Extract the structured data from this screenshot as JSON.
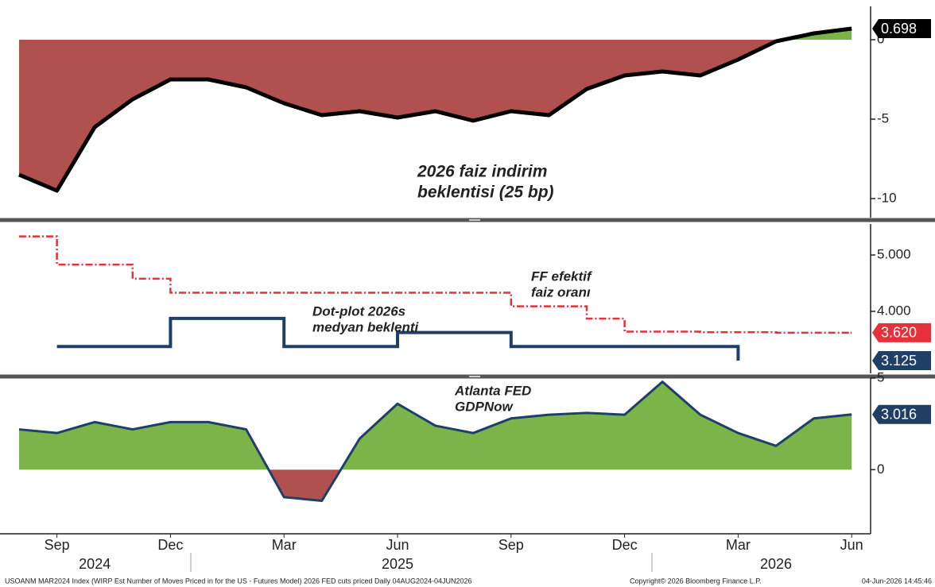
{
  "chart_data": [
    {
      "type": "area",
      "x": [
        "2024-08",
        "2024-09",
        "2024-10",
        "2024-11",
        "2024-12",
        "2025-01",
        "2025-02",
        "2025-03",
        "2025-04",
        "2025-05",
        "2025-06",
        "2025-07",
        "2025-08",
        "2025-09",
        "2025-10",
        "2025-11",
        "2025-12",
        "2026-01",
        "2026-02",
        "2026-03",
        "2026-04",
        "2026-05",
        "2026-06"
      ],
      "series": [
        {
          "name": "2026 FED cuts priced",
          "color": "#000000",
          "values": [
            -8.5,
            -9.5,
            -5.5,
            -3.75,
            -2.5,
            -2.5,
            -3,
            -4,
            -4.75,
            -4.5,
            -4.9,
            -4.5,
            -5.1,
            -4.5,
            -4.75,
            -3.1,
            -2.25,
            -2,
            -2.25,
            -1.25,
            -0.1,
            0.4,
            0.698
          ]
        }
      ],
      "fill_above_color": "#7bb54a",
      "fill_below_color": "#b0504f",
      "annotations": [
        "2026 faiz indirim",
        "beklentisi (25 bp)"
      ],
      "ylim": [
        -11.2,
        2.1
      ],
      "yticks": [
        0,
        -5,
        -10
      ]
    },
    {
      "type": "step",
      "x": [
        "2024-08",
        "2024-09",
        "2024-10",
        "2024-11",
        "2024-12",
        "2025-01",
        "2025-02",
        "2025-03",
        "2025-04",
        "2025-05",
        "2025-06",
        "2025-07",
        "2025-08",
        "2025-09",
        "2025-10",
        "2025-11",
        "2025-12",
        "2026-01",
        "2026-02",
        "2026-03",
        "2026-04",
        "2026-05",
        "2026-06"
      ],
      "series": [
        {
          "name": "FF efektif faiz oranı",
          "color": "#e8303a",
          "dashed": true,
          "values": [
            5.33,
            4.83,
            4.83,
            4.58,
            4.33,
            4.33,
            4.33,
            4.33,
            4.33,
            4.33,
            4.33,
            4.33,
            4.33,
            4.09,
            4.09,
            3.87,
            3.64,
            3.64,
            3.63,
            3.63,
            3.62,
            3.62,
            3.62
          ],
          "value_labels": [
            null,
            null,
            null,
            null,
            null,
            null,
            null,
            null,
            null,
            null,
            null,
            null,
            null,
            null,
            null,
            null,
            null,
            null,
            null,
            null,
            null,
            null,
            "3.620"
          ]
        },
        {
          "name": "Dot-plot 2026s medyan beklenti",
          "color": "#1f3f66",
          "dashed": false,
          "values": [
            null,
            3.375,
            3.375,
            3.375,
            3.875,
            3.875,
            3.875,
            3.375,
            3.375,
            3.375,
            3.625,
            3.625,
            3.625,
            3.375,
            3.375,
            3.375,
            3.375,
            3.375,
            3.375,
            3.125,
            null,
            null,
            null
          ],
          "value_labels": [
            null,
            null,
            null,
            null,
            null,
            null,
            null,
            null,
            null,
            null,
            null,
            null,
            null,
            null,
            null,
            null,
            null,
            null,
            null,
            "3.125",
            null,
            null,
            null
          ]
        }
      ],
      "annotations": [
        {
          "lines": [
            "FF efektif",
            "faiz oranı"
          ]
        },
        {
          "lines": [
            "Dot-plot 2026s",
            "medyan beklenti"
          ]
        }
      ],
      "ylim": [
        2.9,
        5.55
      ],
      "yticks": [
        {
          "value": 5,
          "label": "5.000"
        },
        {
          "value": 4,
          "label": "4.000"
        }
      ]
    },
    {
      "type": "area",
      "x": [
        "2024-08",
        "2024-09",
        "2024-10",
        "2024-11",
        "2024-12",
        "2025-01",
        "2025-02",
        "2025-03",
        "2025-04",
        "2025-05",
        "2025-06",
        "2025-07",
        "2025-08",
        "2025-09",
        "2025-10",
        "2025-11",
        "2025-12",
        "2026-01",
        "2026-02",
        "2026-03",
        "2026-04",
        "2026-05",
        "2026-06"
      ],
      "series": [
        {
          "name": "Atlanta FED GDPNow",
          "color": "#1f3f66",
          "values": [
            2.2,
            2.0,
            2.6,
            2.2,
            2.6,
            2.6,
            2.2,
            -1.5,
            -1.7,
            1.7,
            3.6,
            2.4,
            2.0,
            2.8,
            3.0,
            3.1,
            3.0,
            4.8,
            3.0,
            2.0,
            1.3,
            2.8,
            3.016
          ]
        }
      ],
      "fill_above_color": "#7bb54a",
      "fill_below_color": "#b0504f",
      "annotations": [
        "Atlanta FED",
        "GDPNow"
      ],
      "ylim": [
        -3.5,
        5
      ],
      "yticks": [
        5,
        0
      ],
      "xticks": [
        {
          "value": "2024-09",
          "label": "Sep"
        },
        {
          "value": "2024-12",
          "label": "Dec"
        },
        {
          "value": "2025-03",
          "label": "Mar"
        },
        {
          "value": "2025-06",
          "label": "Jun"
        },
        {
          "value": "2025-09",
          "label": "Sep"
        },
        {
          "value": "2025-12",
          "label": "Dec"
        },
        {
          "value": "2026-03",
          "label": "Mar"
        },
        {
          "value": "2026-06",
          "label": "Jun"
        }
      ],
      "year_labels": [
        {
          "value": "2024-10",
          "label": "2024"
        },
        {
          "value": "2025-06",
          "label": "2025"
        },
        {
          "value": "2026-04",
          "label": "2026"
        }
      ]
    }
  ],
  "footer": {
    "source": "USOANM MAR2024 Index (WIRP Est Number of Moves Priced in for the US - Futures Model) 2026 FED cuts priced Daily 04AUG2024-04JUN2026",
    "copyright": "Copyright© 2026 Bloomberg Finance L.P.",
    "timestamp": "04-Jun-2026 14:45:46"
  }
}
